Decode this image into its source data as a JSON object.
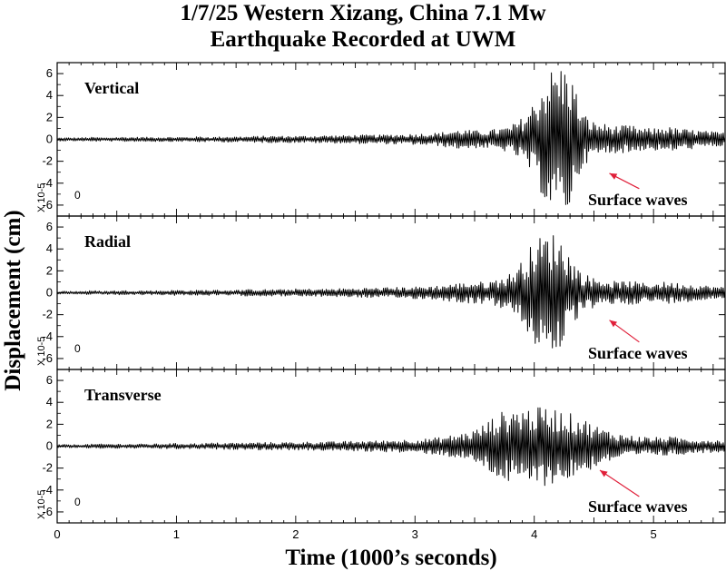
{
  "title_lines": [
    "1/7/25 Western Xizang, China 7.1 Mw",
    "Earthquake Recorded at UWM"
  ],
  "chart_data": {
    "type": "line",
    "xlabel": "Time (1000’s seconds)",
    "ylabel": "Displacement (cm)",
    "xlim": [
      0,
      5.6
    ],
    "x_ticks": [
      0,
      1,
      2,
      3,
      4,
      5
    ],
    "ylim": [
      -7,
      7
    ],
    "y_ticks": [
      -6,
      -4,
      -2,
      0,
      2,
      4,
      6
    ],
    "y_scale_label": "X 10-5",
    "grid": false,
    "annotation_text": "Surface waves",
    "panels": [
      {
        "name": "Vertical",
        "note": "trace sampled every 0.1 ks (envelope of oscillation)",
        "x": [
          0,
          0.1,
          0.2,
          0.3,
          0.4,
          0.5,
          0.6,
          0.7,
          0.8,
          0.9,
          1.0,
          1.1,
          1.2,
          1.3,
          1.4,
          1.5,
          1.6,
          1.7,
          1.8,
          1.9,
          2.0,
          2.1,
          2.2,
          2.3,
          2.4,
          2.5,
          2.6,
          2.7,
          2.8,
          2.9,
          3.0,
          3.1,
          3.2,
          3.3,
          3.4,
          3.5,
          3.6,
          3.7,
          3.8,
          3.9,
          4.0,
          4.1,
          4.2,
          4.3,
          4.4,
          4.5,
          4.6,
          4.7,
          4.8,
          4.9,
          5.0,
          5.1,
          5.2,
          5.3,
          5.4,
          5.5,
          5.6
        ],
        "amplitude": [
          0.15,
          0.15,
          0.15,
          0.2,
          0.15,
          0.2,
          0.2,
          0.2,
          0.2,
          0.2,
          0.2,
          0.2,
          0.25,
          0.2,
          0.25,
          0.25,
          0.25,
          0.3,
          0.3,
          0.3,
          0.3,
          0.3,
          0.35,
          0.35,
          0.35,
          0.4,
          0.4,
          0.4,
          0.45,
          0.45,
          0.5,
          0.55,
          0.6,
          0.8,
          0.9,
          0.8,
          0.8,
          1.0,
          1.2,
          2.0,
          3.5,
          6.0,
          7.0,
          6.5,
          2.5,
          1.6,
          1.4,
          1.2,
          1.3,
          1.0,
          1.0,
          1.2,
          1.0,
          0.9,
          0.8,
          0.7,
          0.6
        ]
      },
      {
        "name": "Radial",
        "note": "trace sampled every 0.1 ks (envelope of oscillation)",
        "x": [
          0,
          0.1,
          0.2,
          0.3,
          0.4,
          0.5,
          0.6,
          0.7,
          0.8,
          0.9,
          1.0,
          1.1,
          1.2,
          1.3,
          1.4,
          1.5,
          1.6,
          1.7,
          1.8,
          1.9,
          2.0,
          2.1,
          2.2,
          2.3,
          2.4,
          2.5,
          2.6,
          2.7,
          2.8,
          2.9,
          3.0,
          3.1,
          3.2,
          3.3,
          3.4,
          3.5,
          3.6,
          3.7,
          3.8,
          3.9,
          4.0,
          4.1,
          4.2,
          4.3,
          4.4,
          4.5,
          4.6,
          4.7,
          4.8,
          4.9,
          5.0,
          5.1,
          5.2,
          5.3,
          5.4,
          5.5,
          5.6
        ],
        "amplitude": [
          0.15,
          0.15,
          0.15,
          0.2,
          0.15,
          0.2,
          0.2,
          0.2,
          0.2,
          0.2,
          0.25,
          0.2,
          0.25,
          0.25,
          0.25,
          0.25,
          0.3,
          0.3,
          0.3,
          0.3,
          0.35,
          0.35,
          0.35,
          0.35,
          0.4,
          0.4,
          0.45,
          0.45,
          0.5,
          0.5,
          0.55,
          0.6,
          0.65,
          0.8,
          0.9,
          1.0,
          1.0,
          1.3,
          1.8,
          3.0,
          4.8,
          5.5,
          5.5,
          3.5,
          1.8,
          1.4,
          1.2,
          1.0,
          1.1,
          0.9,
          0.9,
          1.0,
          0.9,
          0.8,
          0.7,
          0.6,
          0.5
        ]
      },
      {
        "name": "Transverse",
        "note": "trace sampled every 0.1 ks (envelope of oscillation)",
        "x": [
          0,
          0.1,
          0.2,
          0.3,
          0.4,
          0.5,
          0.6,
          0.7,
          0.8,
          0.9,
          1.0,
          1.1,
          1.2,
          1.3,
          1.4,
          1.5,
          1.6,
          1.7,
          1.8,
          1.9,
          2.0,
          2.1,
          2.2,
          2.3,
          2.4,
          2.5,
          2.6,
          2.7,
          2.8,
          2.9,
          3.0,
          3.1,
          3.2,
          3.3,
          3.4,
          3.5,
          3.6,
          3.7,
          3.8,
          3.9,
          4.0,
          4.1,
          4.2,
          4.3,
          4.4,
          4.5,
          4.6,
          4.7,
          4.8,
          4.9,
          5.0,
          5.1,
          5.2,
          5.3,
          5.4,
          5.5,
          5.6
        ],
        "amplitude": [
          0.15,
          0.15,
          0.15,
          0.2,
          0.2,
          0.2,
          0.2,
          0.2,
          0.2,
          0.25,
          0.25,
          0.25,
          0.25,
          0.3,
          0.3,
          0.3,
          0.3,
          0.35,
          0.35,
          0.35,
          0.35,
          0.4,
          0.4,
          0.4,
          0.45,
          0.45,
          0.5,
          0.5,
          0.55,
          0.6,
          0.6,
          0.7,
          0.8,
          1.0,
          1.2,
          1.5,
          2.2,
          3.0,
          3.5,
          3.6,
          3.5,
          3.6,
          3.4,
          3.0,
          2.6,
          2.0,
          1.5,
          1.2,
          1.0,
          0.9,
          0.8,
          0.9,
          0.8,
          0.7,
          0.6,
          0.6,
          0.5
        ]
      }
    ]
  }
}
